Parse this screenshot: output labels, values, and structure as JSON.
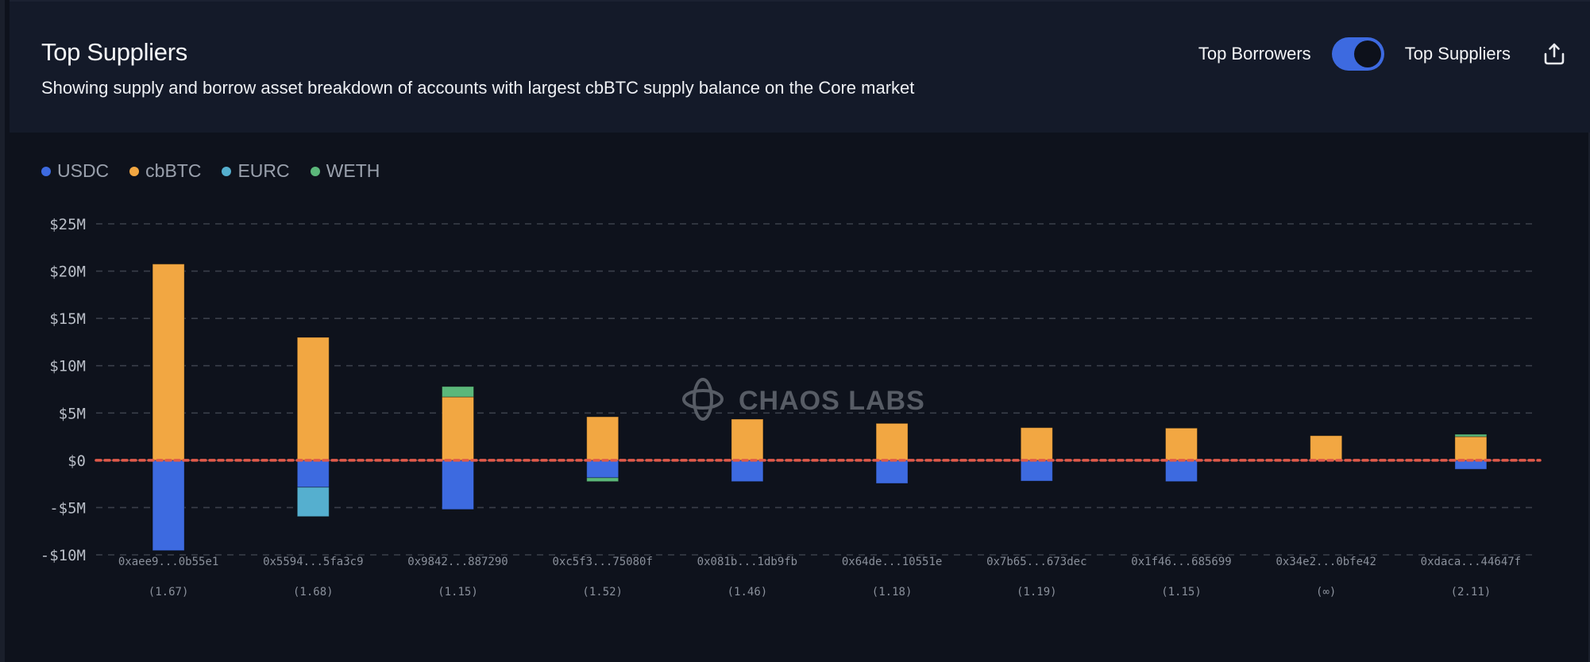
{
  "header": {
    "title": "Top Suppliers",
    "subtitle": "Showing supply and borrow asset breakdown of accounts with largest cbBTC supply balance on the Core market",
    "toggle_left_label": "Top Borrowers",
    "toggle_right_label": "Top Suppliers",
    "toggle_state": "Top Suppliers",
    "share_icon": "share-upload-icon"
  },
  "watermark": "CHAOS LABS",
  "colors": {
    "USDC": "#3d6ae0",
    "cbBTC": "#f2a742",
    "EURC": "#55afcf",
    "WETH": "#5bb77a",
    "zero_line": "#e05a4a"
  },
  "chart_data": {
    "type": "bar",
    "stacked": true,
    "title": "Top Suppliers",
    "xlabel": "",
    "ylabel": "",
    "ylim": [
      -10000000,
      25000000
    ],
    "yticks": [
      25000000,
      20000000,
      15000000,
      10000000,
      5000000,
      0,
      -5000000,
      -10000000
    ],
    "ytick_labels": [
      "$25M",
      "$20M",
      "$15M",
      "$10M",
      "$5M",
      "$0",
      "-$5M",
      "-$10M"
    ],
    "grid": true,
    "legend_position": "top-left",
    "categories": [
      "0xaee9...0b55e1",
      "0x5594...5fa3c9",
      "0x9842...887290",
      "0xc5f3...75080f",
      "0x081b...1db9fb",
      "0x64de...10551e",
      "0x7b65...673dec",
      "0x1f46...685699",
      "0x34e2...0bfe42",
      "0xdaca...44647f"
    ],
    "health_factors": [
      "(1.67)",
      "(1.68)",
      "(1.15)",
      "(1.52)",
      "(1.46)",
      "(1.18)",
      "(1.19)",
      "(1.15)",
      "(∞)",
      "(2.11)"
    ],
    "series": [
      {
        "name": "USDC",
        "values": [
          -9550000,
          -2850000,
          -5200000,
          -1850000,
          -2250000,
          -2450000,
          -2200000,
          -2250000,
          0,
          -950000
        ]
      },
      {
        "name": "cbBTC",
        "values": [
          20750000,
          13000000,
          6700000,
          4600000,
          4350000,
          3900000,
          3450000,
          3400000,
          2600000,
          2500000
        ]
      },
      {
        "name": "EURC",
        "values": [
          0,
          -3100000,
          0,
          0,
          0,
          0,
          0,
          0,
          0,
          0
        ]
      },
      {
        "name": "WETH",
        "values": [
          0,
          0,
          1100000,
          -400000,
          0,
          0,
          0,
          0,
          0,
          250000
        ]
      }
    ]
  }
}
